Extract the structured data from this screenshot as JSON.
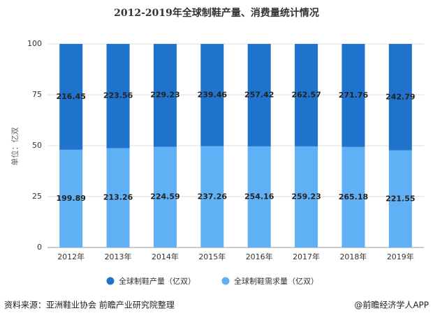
{
  "chart_data": {
    "type": "percent_stacked_bar",
    "title": "2012-2019年全球制鞋产量、消费量统计情况",
    "y_label": "单位：亿双",
    "categories": [
      "2012年",
      "2013年",
      "2014年",
      "2015年",
      "2016年",
      "2017年",
      "2018年",
      "2019年"
    ],
    "series": [
      {
        "name": "全球制鞋产量（亿双）",
        "color": "#1f73cc",
        "values": [
          216.45,
          223.56,
          229.23,
          239.46,
          257.42,
          262.57,
          271.76,
          242.79
        ]
      },
      {
        "name": "全球制鞋需求量（亿双）",
        "color": "#5fb0f5",
        "values": [
          199.89,
          213.26,
          224.59,
          237.26,
          254.16,
          259.23,
          265.18,
          221.55
        ]
      }
    ],
    "ylim": [
      0,
      100
    ],
    "yticks": [
      0,
      25,
      50,
      75,
      100
    ],
    "grid": true,
    "source": "资料来源：亚洲鞋业协会 前瞻产业研究院整理",
    "credit": "@前瞻经济学人APP"
  }
}
